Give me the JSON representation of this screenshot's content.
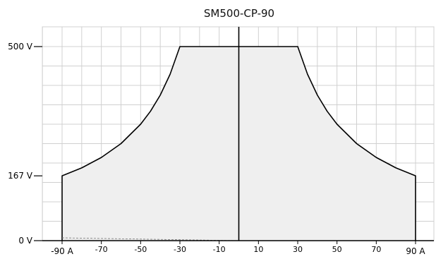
{
  "chart_data": {
    "type": "area",
    "title": "SM500-CP-90",
    "xlabel": "",
    "ylabel": "",
    "xlim": [
      -90,
      90
    ],
    "ylim": [
      0,
      500
    ],
    "grid": true,
    "y_ticks": [
      {
        "value": 0,
        "label": "0 V"
      },
      {
        "value": 167,
        "label": "167 V"
      },
      {
        "value": 500,
        "label": "500 V"
      }
    ],
    "x_ticks": [
      {
        "value": -90,
        "label": "-90 A"
      },
      {
        "value": -70,
        "label": "-70"
      },
      {
        "value": -50,
        "label": "-50"
      },
      {
        "value": -30,
        "label": "-30"
      },
      {
        "value": -10,
        "label": "-10"
      },
      {
        "value": 10,
        "label": "10"
      },
      {
        "value": 30,
        "label": "30"
      },
      {
        "value": 50,
        "label": "50"
      },
      {
        "value": 70,
        "label": "70"
      },
      {
        "value": 90,
        "label": "90 A"
      }
    ],
    "series": [
      {
        "x": [
          -90,
          -80,
          -70,
          -60,
          -50,
          -45,
          -40,
          -35,
          -30,
          0,
          30,
          35,
          40,
          45,
          50,
          60,
          70,
          80,
          90
        ],
        "y": [
          167,
          187.5,
          214.3,
          250,
          300,
          333.3,
          375,
          428.6,
          500,
          500,
          500,
          428.6,
          375,
          333.3,
          300,
          250,
          214.3,
          187.5,
          167
        ]
      }
    ],
    "colors": {
      "fill": "#efefef",
      "line": "#000000",
      "grid": "#d0d0d0",
      "axis": "#000000"
    }
  }
}
